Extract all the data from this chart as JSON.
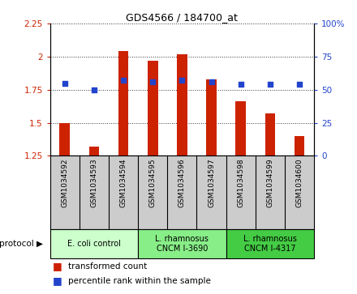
{
  "title": "GDS4566 / 184700_at",
  "samples": [
    "GSM1034592",
    "GSM1034593",
    "GSM1034594",
    "GSM1034595",
    "GSM1034596",
    "GSM1034597",
    "GSM1034598",
    "GSM1034599",
    "GSM1034600"
  ],
  "transformed_count": [
    1.5,
    1.32,
    2.04,
    1.97,
    2.02,
    1.83,
    1.66,
    1.57,
    1.4
  ],
  "percentile_rank": [
    55,
    50,
    57,
    56,
    57,
    56,
    54,
    54,
    54
  ],
  "bar_bottom": 1.25,
  "ylim_left": [
    1.25,
    2.25
  ],
  "ylim_right": [
    0,
    100
  ],
  "yticks_left": [
    1.25,
    1.5,
    1.75,
    2.0,
    2.25
  ],
  "ytick_labels_left": [
    "1.25",
    "1.5",
    "1.75",
    "2",
    "2.25"
  ],
  "yticks_right": [
    0,
    25,
    50,
    75,
    100
  ],
  "ytick_labels_right": [
    "0",
    "25",
    "50",
    "75",
    "100%"
  ],
  "bar_color": "#cc2200",
  "dot_color": "#2244cc",
  "protocols": [
    {
      "label": "E. coli control",
      "start": 0,
      "end": 3,
      "color": "#ccffcc"
    },
    {
      "label": "L. rhamnosus\nCNCM I-3690",
      "start": 3,
      "end": 6,
      "color": "#88ee88"
    },
    {
      "label": "L. rhamnosus\nCNCM I-4317",
      "start": 6,
      "end": 9,
      "color": "#44cc44"
    }
  ],
  "legend_bar_label": "transformed count",
  "legend_dot_label": "percentile rank within the sample",
  "protocol_label": "protocol",
  "sample_area_color": "#cccccc",
  "dotted_line_color": "#333333",
  "bar_width": 0.35
}
